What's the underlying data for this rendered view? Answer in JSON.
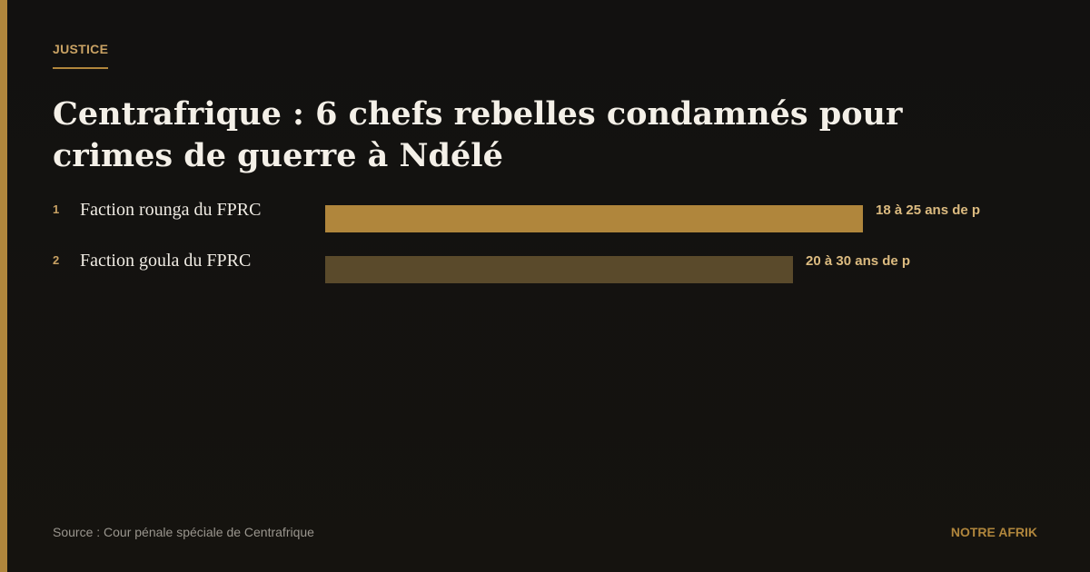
{
  "chart_data": {
    "type": "bar",
    "section": "JUSTICE",
    "title": "Centrafrique : 6 chefs rebelles condamnés pour crimes de guerre à Ndélé",
    "ranks": [
      1,
      2
    ],
    "categories": [
      "Faction rounga du FPRC",
      "Faction goula du FPRC"
    ],
    "values": [
      100,
      87
    ],
    "bar_labels": [
      "18 à 25 ans de p",
      "20 à 30 ans de p"
    ],
    "colors": [
      "#b0863c",
      "#5a4a2b"
    ],
    "source": "Source : Cour pénale spéciale de Centrafrique",
    "brand": "NOTRE AFRIK"
  }
}
